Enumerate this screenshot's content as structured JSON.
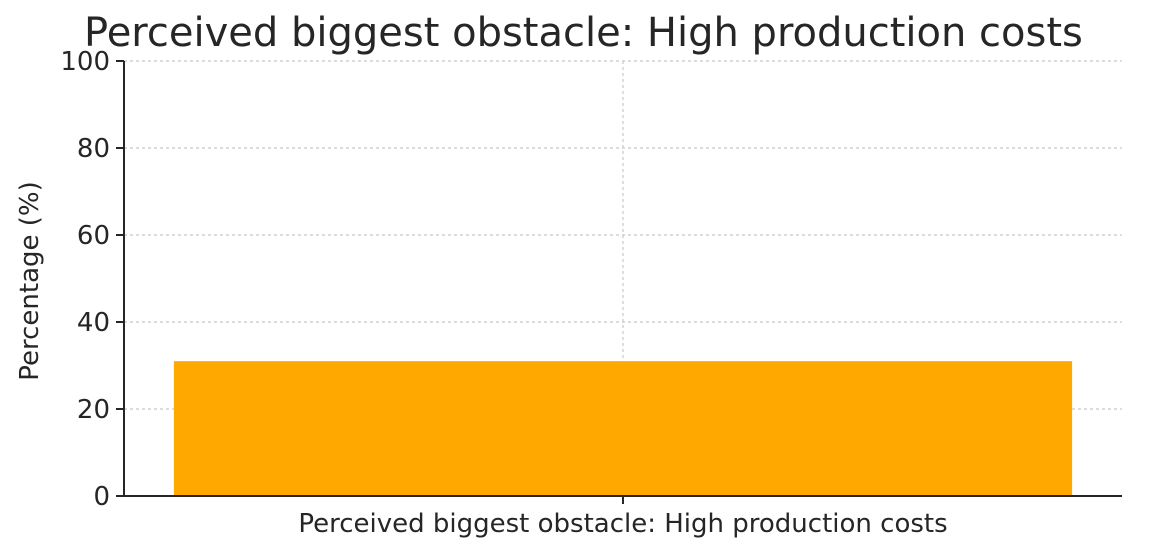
{
  "chart_data": {
    "type": "bar",
    "title": "Perceived biggest obstacle: High production costs",
    "xlabel": "",
    "ylabel": "Percentage (%)",
    "categories": [
      "Perceived biggest obstacle: High production costs"
    ],
    "values": [
      31
    ],
    "ylim": [
      0,
      100
    ],
    "yticks": [
      "0",
      "20",
      "40",
      "60",
      "80",
      "100"
    ],
    "grid": true,
    "bar_color": "#ffa800"
  }
}
